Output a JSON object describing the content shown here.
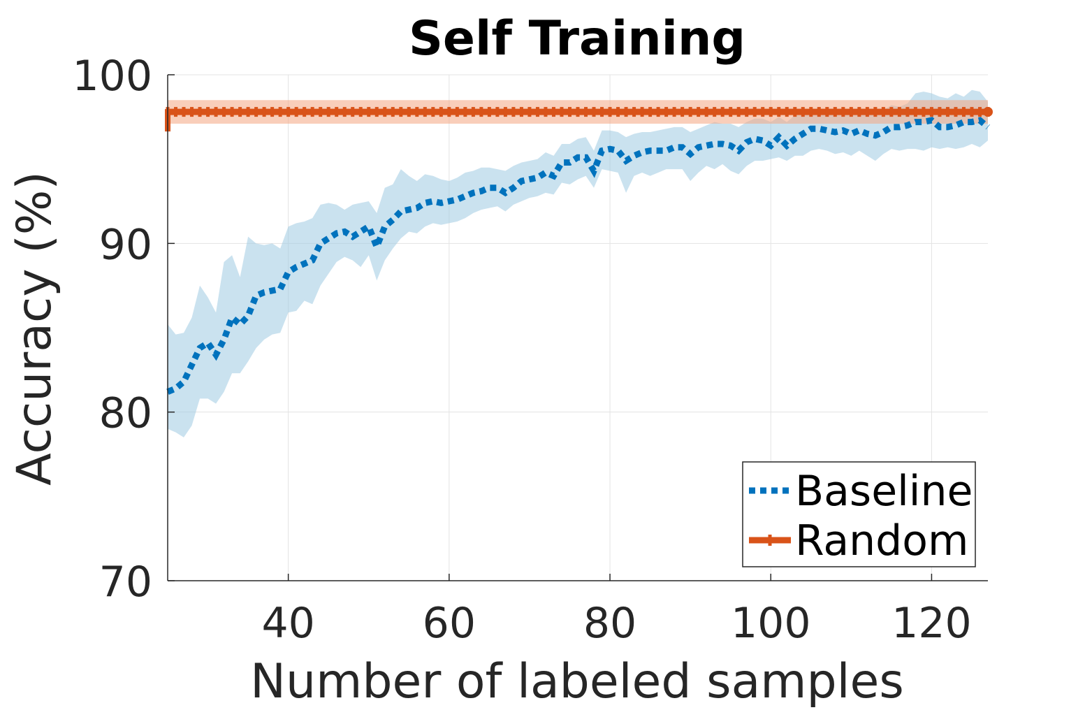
{
  "chart_data": {
    "type": "line",
    "title": "Self Training",
    "xlabel": "Number of labeled samples",
    "ylabel": "Accuracy (%)",
    "xlim": [
      25,
      127
    ],
    "ylim": [
      70,
      100
    ],
    "x_ticks": [
      40,
      60,
      80,
      100,
      120
    ],
    "y_ticks": [
      70,
      80,
      90,
      100
    ],
    "grid": true,
    "legend_position": "bottom-right",
    "series": [
      {
        "name": "Baseline",
        "color": "#0072BD",
        "line_style": "dotted",
        "x": [
          25,
          26,
          27,
          28,
          29,
          30,
          31,
          32,
          33,
          34,
          35,
          36,
          37,
          38,
          39,
          40,
          41,
          42,
          43,
          44,
          45,
          46,
          47,
          48,
          49,
          50,
          51,
          52,
          53,
          54,
          55,
          56,
          57,
          58,
          59,
          60,
          61,
          62,
          63,
          64,
          65,
          66,
          67,
          68,
          69,
          70,
          71,
          72,
          73,
          74,
          75,
          76,
          77,
          78,
          79,
          80,
          81,
          82,
          83,
          84,
          85,
          86,
          87,
          88,
          89,
          90,
          91,
          92,
          93,
          94,
          95,
          96,
          97,
          98,
          99,
          100,
          101,
          102,
          103,
          104,
          105,
          106,
          107,
          108,
          109,
          110,
          111,
          112,
          113,
          114,
          115,
          116,
          117,
          118,
          119,
          120,
          121,
          122,
          123,
          124,
          125,
          126,
          127
        ],
        "y": [
          81.2,
          81.4,
          81.8,
          82.8,
          83.8,
          84.1,
          83.4,
          84.3,
          85.6,
          85.2,
          85.7,
          86.9,
          87.1,
          87.2,
          87.3,
          88.3,
          88.6,
          88.8,
          89.0,
          90.0,
          90.3,
          90.6,
          90.7,
          90.4,
          90.7,
          91.0,
          89.8,
          91.0,
          91.4,
          91.9,
          92.0,
          92.1,
          92.4,
          92.5,
          92.4,
          92.5,
          92.6,
          92.8,
          93.0,
          93.1,
          93.3,
          93.3,
          93.0,
          93.3,
          93.7,
          93.8,
          93.9,
          94.2,
          94.0,
          94.8,
          94.8,
          95.1,
          95.1,
          94.3,
          95.5,
          95.6,
          95.5,
          94.9,
          95.2,
          95.4,
          95.5,
          95.5,
          95.5,
          95.7,
          95.7,
          95.3,
          95.7,
          95.8,
          95.9,
          95.9,
          95.8,
          95.5,
          96.0,
          96.2,
          96.1,
          95.8,
          96.3,
          95.8,
          96.2,
          96.5,
          96.8,
          96.8,
          96.7,
          96.6,
          96.7,
          96.5,
          96.7,
          96.5,
          96.4,
          96.6,
          96.9,
          96.9,
          97.0,
          97.2,
          97.2,
          97.3,
          96.9,
          96.9,
          97.0,
          97.2,
          97.2,
          97.3,
          96.9
        ],
        "band_low": [
          79.0,
          78.8,
          78.5,
          79.2,
          80.8,
          80.8,
          80.5,
          81.2,
          82.3,
          82.3,
          83.0,
          83.8,
          84.3,
          84.6,
          84.7,
          85.9,
          86.0,
          86.6,
          86.4,
          87.5,
          88.2,
          88.9,
          89.2,
          89.0,
          88.6,
          89.3,
          87.8,
          89.0,
          89.7,
          90.3,
          90.7,
          90.6,
          91.0,
          91.2,
          91.1,
          91.2,
          91.3,
          91.5,
          91.8,
          92.0,
          92.1,
          92.2,
          91.9,
          92.3,
          92.5,
          92.7,
          92.8,
          93.0,
          92.9,
          93.6,
          93.5,
          93.8,
          94.0,
          93.3,
          94.4,
          94.3,
          94.2,
          93.0,
          94.0,
          94.2,
          94.0,
          94.2,
          94.4,
          94.4,
          94.4,
          93.7,
          94.2,
          94.6,
          94.4,
          94.7,
          94.3,
          94.1,
          94.6,
          94.9,
          94.9,
          95.0,
          95.1,
          94.9,
          95.2,
          95.2,
          95.5,
          95.6,
          95.5,
          95.3,
          95.4,
          95.2,
          95.5,
          95.2,
          94.9,
          95.3,
          95.6,
          95.5,
          95.6,
          95.6,
          95.5,
          95.7,
          95.6,
          95.7,
          95.6,
          95.7,
          95.9,
          95.7,
          96.1
        ],
        "band_high": [
          85.2,
          84.6,
          84.7,
          85.6,
          87.5,
          86.8,
          85.9,
          88.9,
          89.3,
          88.0,
          90.4,
          90.0,
          89.9,
          90.0,
          89.7,
          91.0,
          91.2,
          91.3,
          91.5,
          92.3,
          92.4,
          92.3,
          92.0,
          92.3,
          92.4,
          92.5,
          91.8,
          93.3,
          93.5,
          94.4,
          94.0,
          93.7,
          94.1,
          94.0,
          93.8,
          93.7,
          93.9,
          94.2,
          94.3,
          94.5,
          94.5,
          94.4,
          94.3,
          94.6,
          94.8,
          94.9,
          95.0,
          95.4,
          95.2,
          95.9,
          95.9,
          96.2,
          96.3,
          95.5,
          96.7,
          96.7,
          96.6,
          96.3,
          96.5,
          96.6,
          96.6,
          96.7,
          96.8,
          96.9,
          96.9,
          96.6,
          96.8,
          97.0,
          97.2,
          97.1,
          97.1,
          96.9,
          97.2,
          97.4,
          97.4,
          97.2,
          97.5,
          97.2,
          97.6,
          97.6,
          97.8,
          97.9,
          97.8,
          97.7,
          97.8,
          97.7,
          97.9,
          97.7,
          97.8,
          97.9,
          98.2,
          98.1,
          98.3,
          98.9,
          99.0,
          98.9,
          98.7,
          98.6,
          98.9,
          98.7,
          99.1,
          99.0,
          98.4
        ]
      },
      {
        "name": "Random",
        "color": "#D95319",
        "line_style": "solid",
        "x": [
          25,
          127
        ],
        "y": [
          97.8,
          97.8
        ],
        "band_low": [
          97.1,
          97.1
        ],
        "band_high": [
          98.5,
          98.5
        ]
      }
    ]
  }
}
